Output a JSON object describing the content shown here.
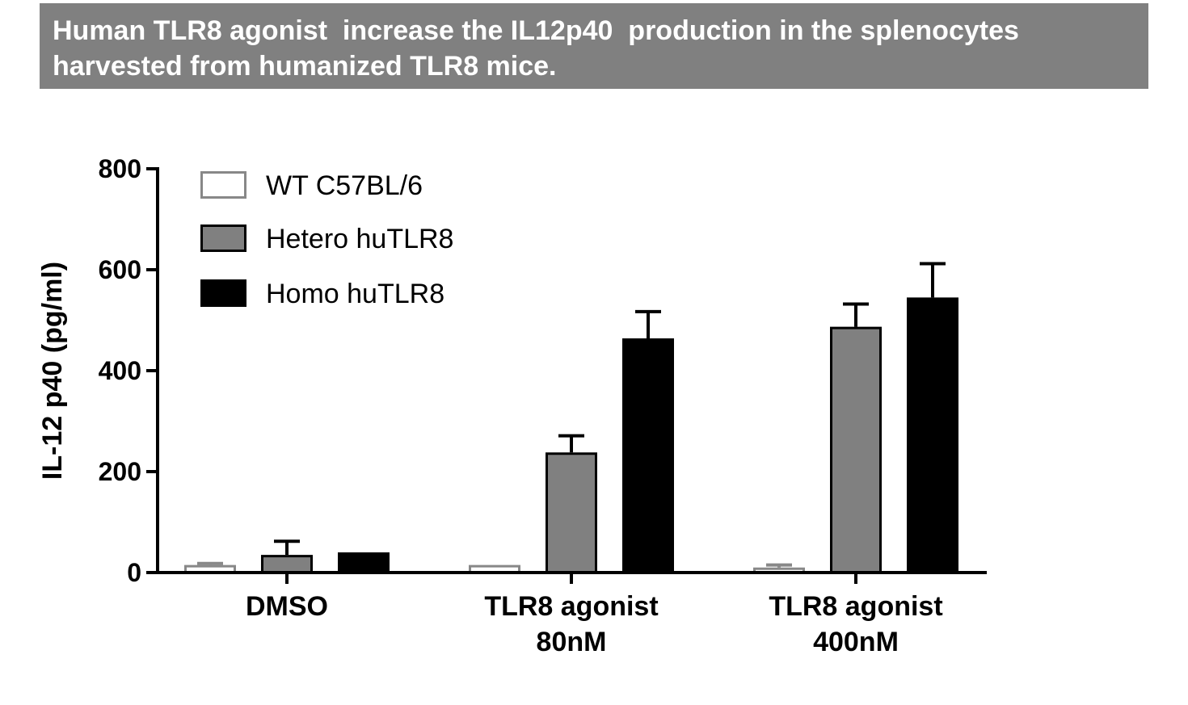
{
  "title": {
    "line1": "Human TLR8 agonist  increase the IL12p40  production in the splenocytes",
    "line2": "harvested from humanized TLR8 mice."
  },
  "chart_data": {
    "type": "bar",
    "title": "Human TLR8 agonist  increase the IL12p40  production in the splenocytes harvested from humanized TLR8 mice.",
    "xlabel": "",
    "ylabel": "IL-12 p40 (pg/ml)",
    "ylim": [
      0,
      800
    ],
    "yticks": [
      0,
      200,
      400,
      600,
      800
    ],
    "grid": false,
    "legend_position": "top-left",
    "categories": [
      [
        "DMSO"
      ],
      [
        "TLR8 agonist",
        "80nM"
      ],
      [
        "TLR8 agonist",
        "400nM"
      ]
    ],
    "series": [
      {
        "name": "WT C57BL/6",
        "color": "#ffffff",
        "edge": "#888888",
        "values": [
          15,
          15,
          10
        ],
        "errors": [
          3,
          0,
          5
        ]
      },
      {
        "name": "Hetero huTLR8",
        "color": "#808080",
        "edge": "#000000",
        "values": [
          35,
          238,
          487
        ],
        "errors": [
          27,
          33,
          45
        ]
      },
      {
        "name": "Homo huTLR8",
        "color": "#000000",
        "edge": "#000000",
        "values": [
          40,
          464,
          545
        ],
        "errors": [
          0,
          53,
          67
        ]
      }
    ]
  }
}
